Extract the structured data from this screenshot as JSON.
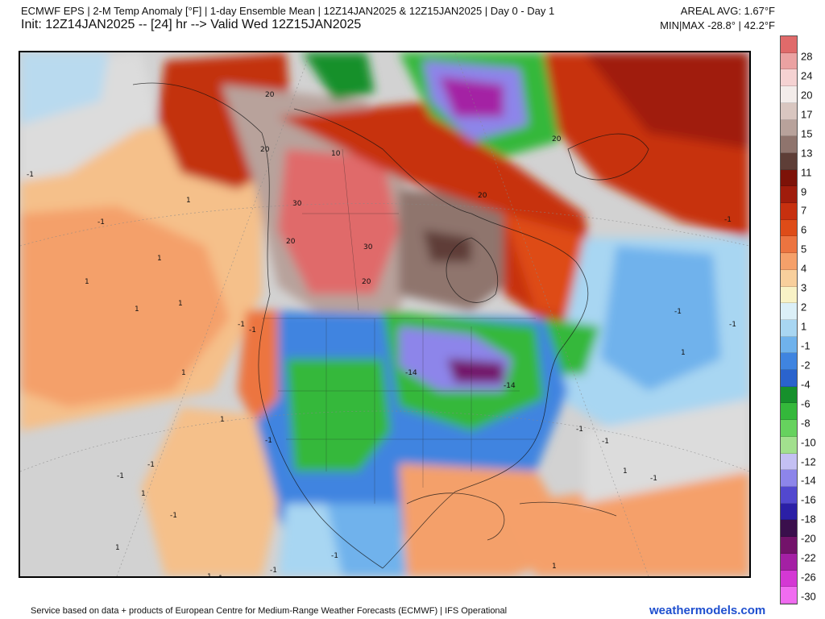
{
  "header": {
    "title_line1": "ECMWF EPS | 2-M Temp Anomaly [°F] | 1-day Ensemble Mean | 12Z14JAN2025 & 12Z15JAN2025 | Day 0 - Day 1",
    "title_line2": "Init: 12Z14JAN2025 -- [24] hr --> Valid Wed 12Z15JAN2025",
    "areal_avg": "AREAL AVG: 1.67°F",
    "min_max": "MIN|MAX -28.8° | 42.2°F"
  },
  "colorbar": {
    "labels": [
      "28",
      "24",
      "20",
      "17",
      "15",
      "13",
      "11",
      "9",
      "7",
      "6",
      "5",
      "4",
      "3",
      "2",
      "1",
      "-1",
      "-2",
      "-4",
      "-6",
      "-8",
      "-10",
      "-12",
      "-14",
      "-16",
      "-18",
      "-20",
      "-22",
      "-26",
      "-30"
    ],
    "colors": [
      "#e06a6a",
      "#eba2a2",
      "#f5d2d2",
      "#f3ecea",
      "#d9c6c0",
      "#b8a29b",
      "#8f746d",
      "#5e3e37",
      "#7d1208",
      "#a01c0c",
      "#c7300f",
      "#de4c18",
      "#ec7440",
      "#f5a06a",
      "#f8cf9c",
      "#f8f2c6",
      "#dbeff7",
      "#a8d6f2",
      "#6fb2ec",
      "#3f84e0",
      "#2a63cd",
      "#16902c",
      "#34b83b",
      "#66d25e",
      "#a2e08e",
      "#c4c0f3",
      "#8d85ea",
      "#5248cf",
      "#2b1fa6",
      "#3a0f4c",
      "#73136a",
      "#a420a4",
      "#d438d4",
      "#f06cf0"
    ]
  },
  "map": {
    "region": "North America",
    "contour_labels": [
      "20",
      "20",
      "30",
      "20",
      "30",
      "20",
      "20",
      "20",
      "-1",
      "-1",
      "1",
      "1",
      "1",
      "1",
      "1",
      "-1",
      "1",
      "-1",
      "-1",
      "1",
      "-1",
      "-1",
      "-1",
      "1",
      "-1",
      "-14",
      "-14",
      "-1",
      "1",
      "-1",
      "-1",
      "-1",
      "1",
      "1",
      "-1",
      "1",
      "1",
      "-1",
      "1",
      "10",
      "-1"
    ]
  },
  "footer": {
    "credit": "Service based on data + products of European Centre for Medium-Range Weather Forecasts (ECMWF) | IFS Operational",
    "brand": "weathermodels.com"
  }
}
